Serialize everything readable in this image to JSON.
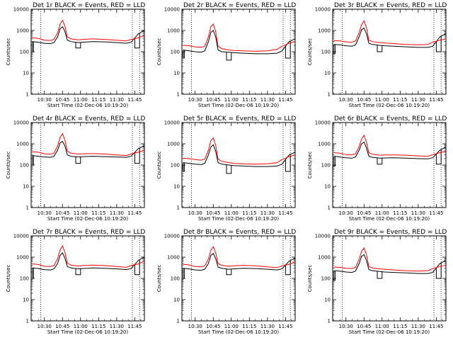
{
  "figure": {
    "background": "#ffffff",
    "line_colors": {
      "events": "#000000",
      "lld": "#ff0000"
    },
    "marker_lines": [
      "10:27",
      "11:43",
      "11:49"
    ]
  },
  "chart_data": [
    {
      "type": "line",
      "title": "Det 1r BLACK = Events, RED = LLD",
      "xlabel": "Start Time (02-Dec-06 10:19:20)",
      "ylabel": "Counts/sec",
      "ylog": true,
      "ylim": [
        1,
        10000
      ],
      "xlim": [
        "10:19",
        "11:53"
      ],
      "yticks": [
        "1",
        "10",
        "100",
        "1000",
        "10000"
      ],
      "xticks": [
        "10:30",
        "10:45",
        "11:00",
        "11:15",
        "11:30",
        "11:45"
      ],
      "grid": false,
      "x": [
        "10:20",
        "10:25",
        "10:30",
        "10:35",
        "10:38",
        "10:41",
        "10:43",
        "10:45",
        "10:47",
        "10:49",
        "10:52",
        "10:58",
        "11:02",
        "11:10",
        "11:20",
        "11:30",
        "11:38",
        "11:42",
        "11:48",
        "11:53"
      ],
      "series": [
        {
          "values": [
            300,
            280,
            250,
            240,
            270,
            500,
            1200,
            1500,
            900,
            350,
            300,
            270,
            280,
            300,
            290,
            270,
            250,
            280,
            700,
            1000
          ]
        },
        {
          "values": [
            450,
            420,
            350,
            340,
            380,
            800,
            2000,
            3000,
            1600,
            500,
            400,
            360,
            380,
            400,
            380,
            350,
            320,
            380,
            450,
            600
          ]
        }
      ],
      "dips": [
        {
          "x": [
            "10:20",
            "10:21"
          ],
          "value": 100
        },
        {
          "x": [
            "10:56",
            "11:00"
          ],
          "value": 150
        },
        {
          "x": [
            "11:45",
            "11:49"
          ],
          "value": 150
        }
      ]
    },
    {
      "type": "line",
      "title": "Det 2r BLACK = Events, RED = LLD",
      "xlabel": "Start Time (02-Dec-06 10:19:20)",
      "ylabel": "Counts/sec",
      "ylog": true,
      "ylim": [
        1,
        10000
      ],
      "xlim": [
        "10:19",
        "11:53"
      ],
      "yticks": [
        "1",
        "10",
        "100",
        "1000",
        "10000"
      ],
      "xticks": [
        "10:30",
        "10:45",
        "11:00",
        "11:15",
        "11:30",
        "11:45"
      ],
      "grid": false,
      "x": [
        "10:20",
        "10:25",
        "10:30",
        "10:35",
        "10:38",
        "10:41",
        "10:43",
        "10:45",
        "10:47",
        "10:49",
        "10:52",
        "10:58",
        "11:02",
        "11:10",
        "11:20",
        "11:30",
        "11:38",
        "11:42",
        "11:48",
        "11:53"
      ],
      "series": [
        {
          "values": [
            120,
            110,
            100,
            95,
            110,
            300,
            800,
            1000,
            500,
            120,
            100,
            95,
            90,
            85,
            80,
            80,
            85,
            110,
            300,
            400
          ]
        },
        {
          "values": [
            200,
            190,
            170,
            160,
            180,
            500,
            1500,
            2000,
            900,
            180,
            140,
            120,
            115,
            110,
            105,
            110,
            130,
            180,
            250,
            300
          ]
        }
      ],
      "dips": [
        {
          "x": [
            "10:20",
            "10:21"
          ],
          "value": 50
        },
        {
          "x": [
            "10:56",
            "11:00"
          ],
          "value": 40
        },
        {
          "x": [
            "11:45",
            "11:49"
          ],
          "value": 50
        }
      ]
    },
    {
      "type": "line",
      "title": "Det 3r BLACK = Events, RED = LLD",
      "xlabel": "Start Time (02-Dec-06 10:19:20)",
      "ylabel": "Counts/sec",
      "ylog": true,
      "ylim": [
        1,
        10000
      ],
      "xlim": [
        "10:19",
        "11:53"
      ],
      "yticks": [
        "1",
        "10",
        "100",
        "1000",
        "10000"
      ],
      "xticks": [
        "10:30",
        "10:45",
        "11:00",
        "11:15",
        "11:30",
        "11:45"
      ],
      "grid": false,
      "x": [
        "10:20",
        "10:25",
        "10:30",
        "10:35",
        "10:38",
        "10:41",
        "10:43",
        "10:45",
        "10:47",
        "10:49",
        "10:52",
        "10:58",
        "11:02",
        "11:10",
        "11:20",
        "11:30",
        "11:38",
        "11:42",
        "11:48",
        "11:53"
      ],
      "series": [
        {
          "values": [
            220,
            210,
            190,
            180,
            210,
            500,
            1100,
            1300,
            700,
            250,
            220,
            200,
            190,
            180,
            170,
            160,
            160,
            180,
            500,
            700
          ]
        },
        {
          "values": [
            330,
            320,
            290,
            280,
            320,
            800,
            1900,
            2800,
            1400,
            350,
            300,
            270,
            260,
            240,
            220,
            210,
            220,
            280,
            350,
            400
          ]
        }
      ],
      "dips": [
        {
          "x": [
            "10:20",
            "10:21"
          ],
          "value": 80
        },
        {
          "x": [
            "10:56",
            "11:00"
          ],
          "value": 100
        },
        {
          "x": [
            "11:45",
            "11:49"
          ],
          "value": 100
        }
      ]
    },
    {
      "type": "line",
      "title": "Det 4r BLACK = Events, RED = LLD",
      "xlabel": "Start Time (02-Dec-06 10:19:20)",
      "ylabel": "Counts/sec",
      "ylog": true,
      "ylim": [
        1,
        10000
      ],
      "xlim": [
        "10:19",
        "11:53"
      ],
      "yticks": [
        "1",
        "10",
        "100",
        "1000",
        "10000"
      ],
      "xticks": [
        "10:30",
        "10:45",
        "11:00",
        "11:15",
        "11:30",
        "11:45"
      ],
      "grid": false,
      "x": [
        "10:20",
        "10:25",
        "10:30",
        "10:35",
        "10:38",
        "10:41",
        "10:43",
        "10:45",
        "10:47",
        "10:49",
        "10:52",
        "10:58",
        "11:02",
        "11:10",
        "11:20",
        "11:30",
        "11:38",
        "11:42",
        "11:48",
        "11:53"
      ],
      "series": [
        {
          "values": [
            280,
            260,
            240,
            230,
            260,
            500,
            1100,
            1300,
            800,
            300,
            260,
            240,
            250,
            260,
            250,
            240,
            230,
            260,
            600,
            800
          ]
        },
        {
          "values": [
            420,
            400,
            340,
            320,
            370,
            800,
            2000,
            3000,
            1500,
            450,
            360,
            330,
            340,
            350,
            330,
            300,
            280,
            330,
            400,
            500
          ]
        }
      ],
      "dips": [
        {
          "x": [
            "10:20",
            "10:21"
          ],
          "value": 100
        },
        {
          "x": [
            "10:56",
            "11:00"
          ],
          "value": 120
        },
        {
          "x": [
            "11:45",
            "11:49"
          ],
          "value": 120
        }
      ]
    },
    {
      "type": "line",
      "title": "Det 5r BLACK = Events, RED = LLD",
      "xlabel": "Start Time (02-Dec-06 10:19:20)",
      "ylabel": "Counts/sec",
      "ylog": true,
      "ylim": [
        1,
        10000
      ],
      "xlim": [
        "10:19",
        "11:53"
      ],
      "yticks": [
        "1",
        "10",
        "100",
        "1000",
        "10000"
      ],
      "xticks": [
        "10:30",
        "10:45",
        "11:00",
        "11:15",
        "11:30",
        "11:45"
      ],
      "grid": false,
      "x": [
        "10:20",
        "10:25",
        "10:30",
        "10:35",
        "10:38",
        "10:41",
        "10:43",
        "10:45",
        "10:47",
        "10:49",
        "10:52",
        "10:58",
        "11:02",
        "11:10",
        "11:20",
        "11:30",
        "11:38",
        "11:42",
        "11:48",
        "11:53"
      ],
      "series": [
        {
          "values": [
            130,
            120,
            110,
            105,
            120,
            300,
            700,
            900,
            450,
            130,
            110,
            100,
            95,
            90,
            85,
            85,
            90,
            110,
            300,
            400
          ]
        },
        {
          "values": [
            210,
            200,
            180,
            170,
            190,
            500,
            1400,
            1900,
            850,
            190,
            150,
            130,
            120,
            115,
            110,
            115,
            130,
            180,
            250,
            300
          ]
        }
      ],
      "dips": [
        {
          "x": [
            "10:20",
            "10:21"
          ],
          "value": 50
        },
        {
          "x": [
            "10:56",
            "11:00"
          ],
          "value": 40
        },
        {
          "x": [
            "11:45",
            "11:49"
          ],
          "value": 50
        }
      ]
    },
    {
      "type": "line",
      "title": "Det 6r BLACK = Events, RED = LLD",
      "xlabel": "Start Time (02-Dec-06 10:19:20)",
      "ylabel": "Counts/sec",
      "ylog": true,
      "ylim": [
        1,
        10000
      ],
      "xlim": [
        "10:19",
        "11:53"
      ],
      "yticks": [
        "1",
        "10",
        "100",
        "1000",
        "10000"
      ],
      "xticks": [
        "10:30",
        "10:45",
        "11:00",
        "11:15",
        "11:30",
        "11:45"
      ],
      "grid": false,
      "x": [
        "10:20",
        "10:25",
        "10:30",
        "10:35",
        "10:38",
        "10:41",
        "10:43",
        "10:45",
        "10:47",
        "10:49",
        "10:52",
        "10:58",
        "11:02",
        "11:10",
        "11:20",
        "11:30",
        "11:38",
        "11:42",
        "11:48",
        "11:53"
      ],
      "series": [
        {
          "values": [
            260,
            240,
            220,
            210,
            240,
            500,
            1000,
            1200,
            650,
            260,
            230,
            210,
            215,
            220,
            210,
            200,
            195,
            220,
            500,
            700
          ]
        },
        {
          "values": [
            380,
            360,
            310,
            300,
            340,
            750,
            1700,
            2500,
            1200,
            380,
            320,
            290,
            300,
            300,
            290,
            270,
            260,
            310,
            380,
            450
          ]
        }
      ],
      "dips": [
        {
          "x": [
            "10:20",
            "10:21"
          ],
          "value": 90
        },
        {
          "x": [
            "10:56",
            "11:00"
          ],
          "value": 110
        },
        {
          "x": [
            "11:45",
            "11:49"
          ],
          "value": 110
        }
      ]
    },
    {
      "type": "line",
      "title": "Det 7r BLACK = Events, RED = LLD",
      "xlabel": "Start Time (02-Dec-06 10:19:20)",
      "ylabel": "Counts/sec",
      "ylog": true,
      "ylim": [
        1,
        10000
      ],
      "xlim": [
        "10:19",
        "11:53"
      ],
      "yticks": [
        "1",
        "10",
        "100",
        "1000",
        "10000"
      ],
      "xticks": [
        "10:30",
        "10:45",
        "11:00",
        "11:15",
        "11:30",
        "11:45"
      ],
      "grid": false,
      "x": [
        "10:20",
        "10:25",
        "10:30",
        "10:35",
        "10:38",
        "10:41",
        "10:43",
        "10:45",
        "10:47",
        "10:49",
        "10:52",
        "10:58",
        "11:02",
        "11:10",
        "11:20",
        "11:30",
        "11:38",
        "11:42",
        "11:48",
        "11:53"
      ],
      "series": [
        {
          "values": [
            310,
            290,
            260,
            250,
            280,
            500,
            1200,
            1600,
            900,
            360,
            310,
            280,
            290,
            310,
            300,
            280,
            260,
            290,
            700,
            1000
          ]
        },
        {
          "values": [
            480,
            450,
            370,
            360,
            400,
            850,
            2200,
            3300,
            1700,
            520,
            420,
            380,
            400,
            420,
            400,
            360,
            330,
            400,
            480,
            650
          ]
        }
      ],
      "dips": [
        {
          "x": [
            "10:20",
            "10:21"
          ],
          "value": 100
        },
        {
          "x": [
            "10:56",
            "11:00"
          ],
          "value": 150
        },
        {
          "x": [
            "11:45",
            "11:49"
          ],
          "value": 150
        }
      ]
    },
    {
      "type": "line",
      "title": "Det 8r BLACK = Events, RED = LLD",
      "xlabel": "Start Time (02-Dec-06 10:19:20)",
      "ylabel": "Counts/sec",
      "ylog": true,
      "ylim": [
        1,
        10000
      ],
      "xlim": [
        "10:19",
        "11:53"
      ],
      "yticks": [
        "1",
        "10",
        "100",
        "1000",
        "10000"
      ],
      "xticks": [
        "10:30",
        "10:45",
        "11:00",
        "11:15",
        "11:30",
        "11:45"
      ],
      "grid": false,
      "x": [
        "10:20",
        "10:25",
        "10:30",
        "10:35",
        "10:38",
        "10:41",
        "10:43",
        "10:45",
        "10:47",
        "10:49",
        "10:52",
        "10:58",
        "11:02",
        "11:10",
        "11:20",
        "11:30",
        "11:38",
        "11:42",
        "11:48",
        "11:53"
      ],
      "series": [
        {
          "values": [
            300,
            280,
            250,
            240,
            270,
            500,
            1200,
            1500,
            850,
            340,
            300,
            270,
            280,
            300,
            290,
            270,
            250,
            280,
            650,
            900
          ]
        },
        {
          "values": [
            460,
            430,
            360,
            350,
            390,
            820,
            2100,
            3100,
            1600,
            500,
            410,
            370,
            390,
            410,
            390,
            350,
            320,
            390,
            460,
            600
          ]
        }
      ],
      "dips": [
        {
          "x": [
            "10:20",
            "10:21"
          ],
          "value": 100
        },
        {
          "x": [
            "10:56",
            "11:00"
          ],
          "value": 150
        },
        {
          "x": [
            "11:45",
            "11:49"
          ],
          "value": 150
        }
      ]
    },
    {
      "type": "line",
      "title": "Det 9r BLACK = Events, RED = LLD",
      "xlabel": "Start Time (02-Dec-06 10:19:20)",
      "ylabel": "Counts/sec",
      "ylog": true,
      "ylim": [
        1,
        10000
      ],
      "xlim": [
        "10:19",
        "11:53"
      ],
      "yticks": [
        "1",
        "10",
        "100",
        "1000",
        "10000"
      ],
      "xticks": [
        "10:30",
        "10:45",
        "11:00",
        "11:15",
        "11:30",
        "11:45"
      ],
      "grid": false,
      "x": [
        "10:20",
        "10:25",
        "10:30",
        "10:35",
        "10:38",
        "10:41",
        "10:43",
        "10:45",
        "10:47",
        "10:49",
        "10:52",
        "10:58",
        "11:02",
        "11:10",
        "11:20",
        "11:30",
        "11:38",
        "11:42",
        "11:48",
        "11:53"
      ],
      "series": [
        {
          "values": [
            230,
            220,
            200,
            190,
            220,
            500,
            1100,
            1300,
            700,
            260,
            230,
            210,
            200,
            190,
            180,
            170,
            170,
            190,
            500,
            700
          ]
        },
        {
          "values": [
            340,
            330,
            300,
            290,
            330,
            800,
            1900,
            2700,
            1300,
            360,
            310,
            280,
            270,
            250,
            230,
            220,
            230,
            290,
            360,
            420
          ]
        }
      ],
      "dips": [
        {
          "x": [
            "10:20",
            "10:21"
          ],
          "value": 80
        },
        {
          "x": [
            "10:56",
            "11:00"
          ],
          "value": 100
        },
        {
          "x": [
            "11:45",
            "11:49"
          ],
          "value": 100
        }
      ]
    }
  ]
}
